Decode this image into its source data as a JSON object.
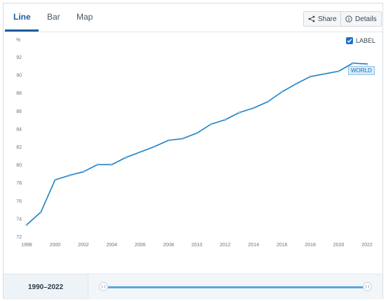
{
  "tabs": [
    {
      "label": "Line",
      "active": true
    },
    {
      "label": "Bar",
      "active": false
    },
    {
      "label": "Map",
      "active": false
    }
  ],
  "actions": {
    "share_label": "Share",
    "details_label": "Details"
  },
  "label_toggle": {
    "label": "LABEL",
    "checked": true
  },
  "footer": {
    "range_label": "1990–2022"
  },
  "colors": {
    "accent": "#1d5e9e",
    "line": "#1f7fc4",
    "slider": "#5aa7e0"
  },
  "chart_data": {
    "type": "line",
    "ylabel": "%",
    "ylim": [
      72,
      92
    ],
    "yticks": [
      72,
      74,
      76,
      78,
      80,
      82,
      84,
      86,
      88,
      90,
      92
    ],
    "xlim": [
      1998,
      2022
    ],
    "xticks": [
      1998,
      2000,
      2002,
      2004,
      2006,
      2008,
      2010,
      2012,
      2014,
      2016,
      2018,
      2020,
      2022
    ],
    "grid": false,
    "series": [
      {
        "name": "WORLD",
        "x": [
          1998,
          1999,
          2000,
          2001,
          2002,
          2003,
          2004,
          2005,
          2006,
          2007,
          2008,
          2009,
          2010,
          2011,
          2012,
          2013,
          2014,
          2015,
          2016,
          2017,
          2018,
          2019,
          2020,
          2021,
          2022
        ],
        "values": [
          73.3,
          74.7,
          78.3,
          78.8,
          79.2,
          80.0,
          80.0,
          80.8,
          81.4,
          82.0,
          82.7,
          82.9,
          83.5,
          84.5,
          85.0,
          85.8,
          86.3,
          87.0,
          88.1,
          89.0,
          89.8,
          90.1,
          90.4,
          91.3,
          91.2
        ]
      }
    ]
  }
}
